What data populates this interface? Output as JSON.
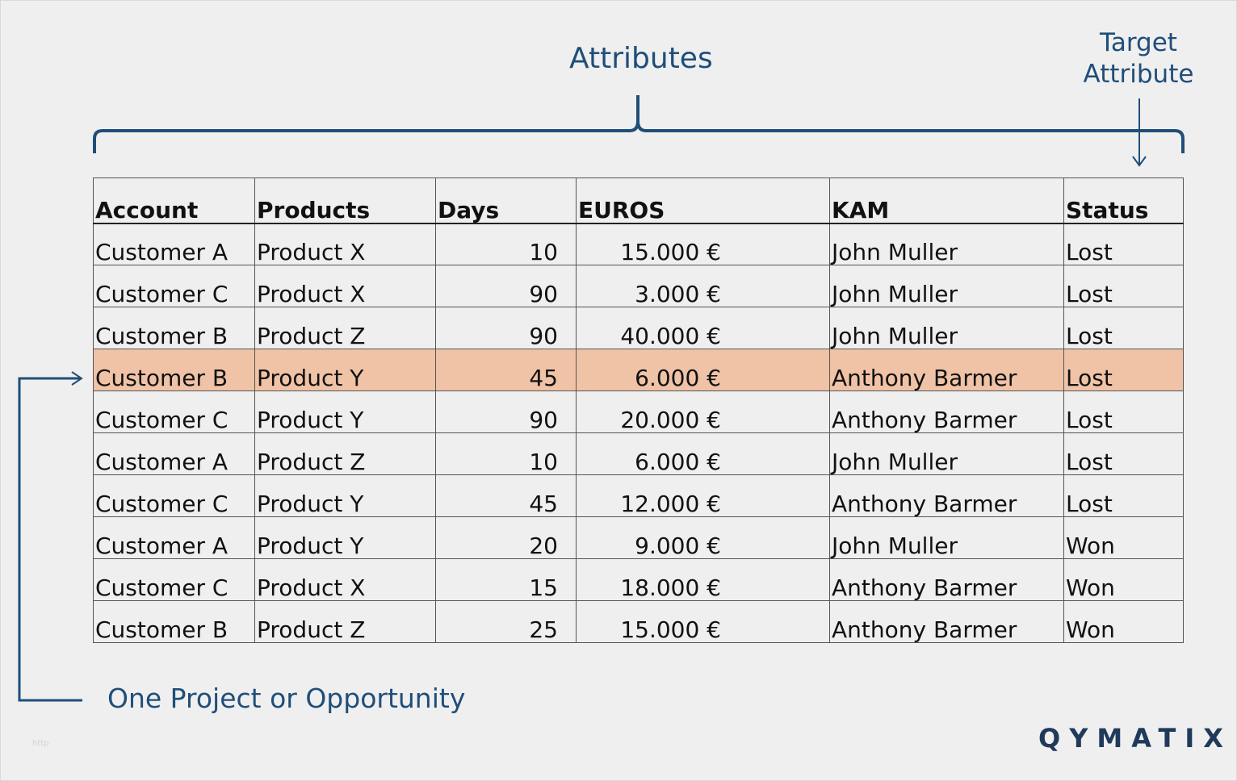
{
  "labels": {
    "attributes": "Attributes",
    "target_line1": "Target",
    "target_line2": "Attribute",
    "opportunity": "One Project or Opportunity"
  },
  "brand": "QYMATIX",
  "watermark": "http",
  "colors": {
    "accent": "#1f4e79",
    "highlight_row": "#f0c3a7",
    "background": "#efefef"
  },
  "table": {
    "headers": [
      "Account",
      "Products",
      "Days",
      "EUROS",
      "KAM",
      "Status"
    ],
    "rows": [
      [
        "Customer A",
        "Product X",
        "10",
        "15.000 €",
        "John Muller",
        "Lost"
      ],
      [
        "Customer C",
        "Product X",
        "90",
        "3.000 €",
        "John Muller",
        "Lost"
      ],
      [
        "Customer B",
        "Product Z",
        "90",
        "40.000 €",
        "John Muller",
        "Lost"
      ],
      [
        "Customer B",
        "Product Y",
        "45",
        "6.000 €",
        "Anthony Barmer",
        "Lost"
      ],
      [
        "Customer C",
        "Product Y",
        "90",
        "20.000 €",
        "Anthony Barmer",
        "Lost"
      ],
      [
        "Customer A",
        "Product Z",
        "10",
        "6.000 €",
        "John Muller",
        "Lost"
      ],
      [
        "Customer C",
        "Product Y",
        "45",
        "12.000 €",
        "Anthony Barmer",
        "Lost"
      ],
      [
        "Customer A",
        "Product Y",
        "20",
        "9.000 €",
        "John Muller",
        "Won"
      ],
      [
        "Customer C",
        "Product X",
        "15",
        "18.000 €",
        "Anthony Barmer",
        "Won"
      ],
      [
        "Customer B",
        "Product Z",
        "25",
        "15.000 €",
        "Anthony Barmer",
        "Won"
      ]
    ],
    "highlighted_row": 3
  }
}
